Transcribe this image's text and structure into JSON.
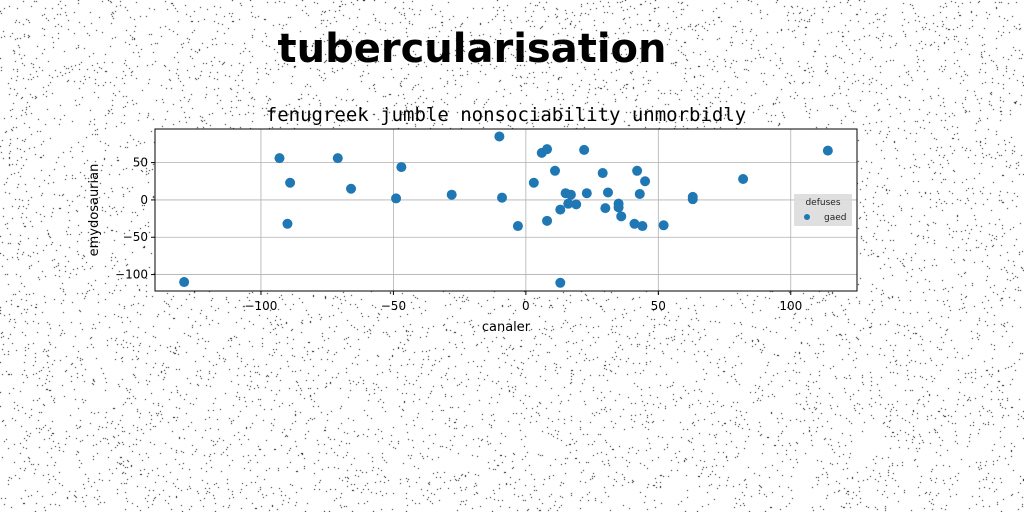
{
  "figure_title": "tubercularisation",
  "chart_data": {
    "type": "scatter",
    "title": "fenugreek jumble nonsociability unmorbidly",
    "xlabel": "canaler",
    "ylabel": "emydosaurian",
    "xlim": [
      -140,
      125
    ],
    "ylim": [
      -122,
      95
    ],
    "xticks": [
      -100,
      -50,
      0,
      50,
      100
    ],
    "xtick_labels": [
      "−100",
      "−50",
      "0",
      "50",
      "100"
    ],
    "yticks": [
      -100,
      -50,
      0,
      50
    ],
    "ytick_labels": [
      "−100",
      "−50",
      "0",
      "50"
    ],
    "grid": true,
    "legend": {
      "title": "defuses",
      "placement": "right",
      "entries": [
        "gaed"
      ]
    },
    "series": [
      {
        "name": "gaed",
        "color": "#1f77b4",
        "points": [
          [
            -129,
            -110
          ],
          [
            -93,
            56
          ],
          [
            -90,
            -32
          ],
          [
            -89,
            23
          ],
          [
            -71,
            56
          ],
          [
            -66,
            15
          ],
          [
            -49,
            2
          ],
          [
            -47,
            44
          ],
          [
            -28,
            7
          ],
          [
            -10,
            85
          ],
          [
            -9,
            3
          ],
          [
            -3,
            -35
          ],
          [
            3,
            23
          ],
          [
            6,
            63
          ],
          [
            8,
            68
          ],
          [
            8,
            -28
          ],
          [
            11,
            39
          ],
          [
            13,
            -111
          ],
          [
            13,
            -13
          ],
          [
            15,
            9
          ],
          [
            16,
            -5
          ],
          [
            17,
            7
          ],
          [
            19,
            -6
          ],
          [
            22,
            67
          ],
          [
            23,
            9
          ],
          [
            29,
            36
          ],
          [
            30,
            -11
          ],
          [
            31,
            10
          ],
          [
            35,
            -5
          ],
          [
            35,
            -10
          ],
          [
            36,
            -22
          ],
          [
            41,
            -32
          ],
          [
            42,
            39
          ],
          [
            43,
            8
          ],
          [
            44,
            -35
          ],
          [
            45,
            25
          ],
          [
            52,
            -34
          ],
          [
            63,
            1
          ],
          [
            63,
            4
          ],
          [
            82,
            28
          ],
          [
            114,
            66
          ]
        ]
      }
    ]
  }
}
